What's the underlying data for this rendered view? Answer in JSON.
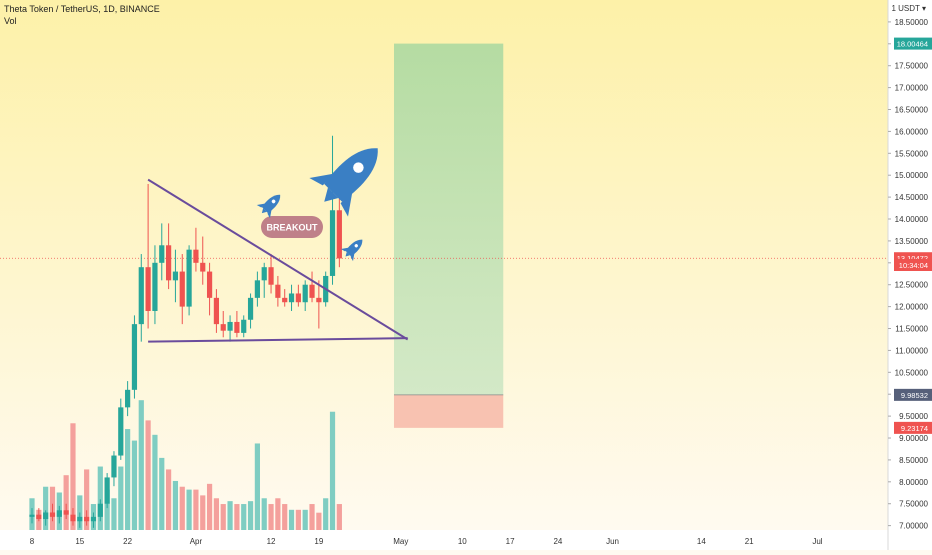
{
  "header": {
    "title": "Theta Token / TetherUS, 1D, BINANCE",
    "vol_label": "Vol",
    "unit": "1 USDT ▾"
  },
  "colors": {
    "up": "#26a69a",
    "down": "#ef5350",
    "vol_up": "#7fcdc2",
    "vol_down": "#f4a09c",
    "trendline": "#6a4c9c",
    "target_zone": "#a8d8a0",
    "stop_zone": "#f7b9a8",
    "rocket": "#3a7fc4",
    "breakout_pill": "#b87382",
    "bg_top": "#fdf1a8",
    "bg_bottom": "#fffaf0"
  },
  "annotations": {
    "breakout_text": "BREAKOUT",
    "icons": [
      "rocket-icon-large",
      "rocket-icon-small",
      "rocket-icon-small"
    ]
  },
  "chart_data": {
    "type": "candlestick",
    "y_axis": {
      "range": [
        6.9,
        19.0
      ],
      "ticks": [
        "7.00000",
        "7.50000",
        "8.00000",
        "8.50000",
        "9.00000",
        "9.50000",
        "10.00000",
        "10.50000",
        "11.00000",
        "11.50000",
        "12.00000",
        "12.50000",
        "13.00000",
        "13.50000",
        "14.00000",
        "14.50000",
        "15.00000",
        "15.50000",
        "16.00000",
        "16.50000",
        "17.00000",
        "17.50000",
        "18.00000",
        "18.50000"
      ],
      "tick_values": [
        7,
        7.5,
        8,
        8.5,
        9,
        9.5,
        10,
        10.5,
        11,
        11.5,
        12,
        12.5,
        13,
        13.5,
        14,
        14.5,
        15,
        15.5,
        16,
        16.5,
        17,
        17.5,
        18,
        18.5
      ]
    },
    "x_axis": {
      "ticks": [
        {
          "label": "8",
          "day": 0
        },
        {
          "label": "15",
          "day": 7
        },
        {
          "label": "22",
          "day": 14
        },
        {
          "label": "Apr",
          "day": 24
        },
        {
          "label": "12",
          "day": 35
        },
        {
          "label": "19",
          "day": 42
        },
        {
          "label": "May",
          "day": 54
        },
        {
          "label": "10",
          "day": 63
        },
        {
          "label": "17",
          "day": 70
        },
        {
          "label": "24",
          "day": 77
        },
        {
          "label": "Jun",
          "day": 85
        },
        {
          "label": "14",
          "day": 98
        },
        {
          "label": "21",
          "day": 105
        },
        {
          "label": "Jul",
          "day": 115
        }
      ]
    },
    "price_labels": [
      {
        "text": "18.00464",
        "value": 18.00464,
        "kind": "target"
      },
      {
        "text": "13.10472",
        "value": 13.10472,
        "kind": "current"
      },
      {
        "text": "10:34:04",
        "value": 12.95,
        "kind": "countdown"
      },
      {
        "text": "9.98532",
        "value": 9.98532,
        "kind": "entry"
      },
      {
        "text": "9.23174",
        "value": 9.23174,
        "kind": "stop"
      }
    ],
    "candles": [
      {
        "o": 7.2,
        "h": 7.4,
        "l": 7.05,
        "c": 7.25,
        "v": 0.55
      },
      {
        "o": 7.25,
        "h": 7.4,
        "l": 7.1,
        "c": 7.15,
        "v": 0.35
      },
      {
        "o": 7.15,
        "h": 7.35,
        "l": 7.0,
        "c": 7.3,
        "v": 0.75
      },
      {
        "o": 7.3,
        "h": 7.5,
        "l": 7.1,
        "c": 7.2,
        "v": 0.75
      },
      {
        "o": 7.2,
        "h": 7.45,
        "l": 7.05,
        "c": 7.35,
        "v": 0.65
      },
      {
        "o": 7.35,
        "h": 7.5,
        "l": 7.15,
        "c": 7.25,
        "v": 0.95
      },
      {
        "o": 7.25,
        "h": 7.4,
        "l": 7.0,
        "c": 7.1,
        "v": 1.85
      },
      {
        "o": 7.1,
        "h": 7.3,
        "l": 6.95,
        "c": 7.2,
        "v": 0.6
      },
      {
        "o": 7.2,
        "h": 7.35,
        "l": 7.0,
        "c": 7.1,
        "v": 1.05
      },
      {
        "o": 7.1,
        "h": 7.3,
        "l": 6.95,
        "c": 7.2,
        "v": 0.45
      },
      {
        "o": 7.2,
        "h": 7.6,
        "l": 7.1,
        "c": 7.5,
        "v": 1.1
      },
      {
        "o": 7.5,
        "h": 8.2,
        "l": 7.4,
        "c": 8.1,
        "v": 0.7
      },
      {
        "o": 8.1,
        "h": 8.7,
        "l": 7.9,
        "c": 8.6,
        "v": 0.55
      },
      {
        "o": 8.6,
        "h": 9.9,
        "l": 8.5,
        "c": 9.7,
        "v": 1.1
      },
      {
        "o": 9.7,
        "h": 10.3,
        "l": 9.5,
        "c": 10.1,
        "v": 1.75
      },
      {
        "o": 10.1,
        "h": 11.8,
        "l": 9.9,
        "c": 11.6,
        "v": 1.55
      },
      {
        "o": 11.6,
        "h": 13.2,
        "l": 11.2,
        "c": 12.9,
        "v": 2.25
      },
      {
        "o": 12.9,
        "h": 14.8,
        "l": 11.5,
        "c": 11.9,
        "v": 1.9
      },
      {
        "o": 11.9,
        "h": 13.4,
        "l": 11.6,
        "c": 13.0,
        "v": 1.65
      },
      {
        "o": 13.0,
        "h": 13.9,
        "l": 12.6,
        "c": 13.4,
        "v": 1.25
      },
      {
        "o": 13.4,
        "h": 13.9,
        "l": 12.4,
        "c": 12.6,
        "v": 1.05
      },
      {
        "o": 12.6,
        "h": 13.3,
        "l": 12.1,
        "c": 12.8,
        "v": 0.85
      },
      {
        "o": 12.8,
        "h": 13.2,
        "l": 11.6,
        "c": 12.0,
        "v": 0.75
      },
      {
        "o": 12.0,
        "h": 13.4,
        "l": 11.8,
        "c": 13.3,
        "v": 0.7
      },
      {
        "o": 13.3,
        "h": 13.8,
        "l": 12.8,
        "c": 13.0,
        "v": 0.7
      },
      {
        "o": 13.0,
        "h": 13.6,
        "l": 12.5,
        "c": 12.8,
        "v": 0.6
      },
      {
        "o": 12.8,
        "h": 13.0,
        "l": 11.8,
        "c": 12.2,
        "v": 0.8
      },
      {
        "o": 12.2,
        "h": 12.4,
        "l": 11.4,
        "c": 11.6,
        "v": 0.55
      },
      {
        "o": 11.6,
        "h": 11.9,
        "l": 11.3,
        "c": 11.45,
        "v": 0.45
      },
      {
        "o": 11.45,
        "h": 11.8,
        "l": 11.2,
        "c": 11.65,
        "v": 0.5
      },
      {
        "o": 11.65,
        "h": 11.9,
        "l": 11.3,
        "c": 11.4,
        "v": 0.45
      },
      {
        "o": 11.4,
        "h": 11.8,
        "l": 11.3,
        "c": 11.7,
        "v": 0.45
      },
      {
        "o": 11.7,
        "h": 12.3,
        "l": 11.5,
        "c": 12.2,
        "v": 0.5
      },
      {
        "o": 12.2,
        "h": 12.8,
        "l": 12.0,
        "c": 12.6,
        "v": 1.5
      },
      {
        "o": 12.6,
        "h": 13.0,
        "l": 12.2,
        "c": 12.9,
        "v": 0.55
      },
      {
        "o": 12.9,
        "h": 13.2,
        "l": 12.3,
        "c": 12.5,
        "v": 0.45
      },
      {
        "o": 12.5,
        "h": 12.7,
        "l": 12.0,
        "c": 12.2,
        "v": 0.55
      },
      {
        "o": 12.2,
        "h": 12.4,
        "l": 12.0,
        "c": 12.1,
        "v": 0.45
      },
      {
        "o": 12.1,
        "h": 12.5,
        "l": 11.9,
        "c": 12.3,
        "v": 0.35
      },
      {
        "o": 12.3,
        "h": 12.5,
        "l": 12.0,
        "c": 12.1,
        "v": 0.35
      },
      {
        "o": 12.1,
        "h": 12.6,
        "l": 11.9,
        "c": 12.5,
        "v": 0.35
      },
      {
        "o": 12.5,
        "h": 12.8,
        "l": 12.1,
        "c": 12.2,
        "v": 0.45
      },
      {
        "o": 12.2,
        "h": 12.6,
        "l": 11.5,
        "c": 12.1,
        "v": 0.3
      },
      {
        "o": 12.1,
        "h": 12.8,
        "l": 12.0,
        "c": 12.7,
        "v": 0.55
      },
      {
        "o": 12.7,
        "h": 15.9,
        "l": 12.5,
        "c": 14.2,
        "v": 2.05
      },
      {
        "o": 14.2,
        "h": 15.0,
        "l": 12.9,
        "c": 13.1,
        "v": 0.45
      }
    ],
    "trendlines": [
      {
        "name": "descending resistance",
        "from": {
          "day": 17,
          "price": 14.9
        },
        "to": {
          "day": 55,
          "price": 11.25
        }
      },
      {
        "name": "horizontal support",
        "from": {
          "day": 17,
          "price": 11.2
        },
        "to": {
          "day": 55,
          "price": 11.28
        }
      }
    ],
    "position": {
      "target": 18.00464,
      "entry": 9.98532,
      "stop": 9.23174,
      "day_from": 53,
      "day_to": 69
    }
  }
}
